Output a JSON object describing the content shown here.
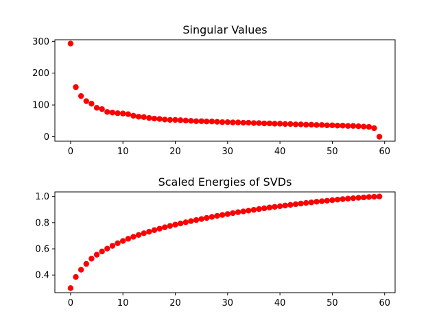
{
  "chart_data": [
    {
      "type": "scatter",
      "title": "Singular Values",
      "xlabel": "",
      "ylabel": "",
      "xlim": [
        -3,
        62
      ],
      "ylim": [
        -14,
        305
      ],
      "grid": false,
      "marker_color": "#ff0000",
      "x_ticks": [
        0,
        10,
        20,
        30,
        40,
        50,
        60
      ],
      "x_tick_labels": [
        "0",
        "10",
        "20",
        "30",
        "40",
        "50",
        "60"
      ],
      "y_ticks": [
        0,
        100,
        200,
        300
      ],
      "y_tick_labels": [
        "0",
        "100",
        "200",
        "300"
      ],
      "x": [
        0,
        1,
        2,
        3,
        4,
        5,
        6,
        7,
        8,
        9,
        10,
        11,
        12,
        13,
        14,
        15,
        16,
        17,
        18,
        19,
        20,
        21,
        22,
        23,
        24,
        25,
        26,
        27,
        28,
        29,
        30,
        31,
        32,
        33,
        34,
        35,
        36,
        37,
        38,
        39,
        40,
        41,
        42,
        43,
        44,
        45,
        46,
        47,
        48,
        49,
        50,
        51,
        52,
        53,
        54,
        55,
        56,
        57,
        58,
        59
      ],
      "y": [
        293,
        156,
        128,
        112,
        104,
        91,
        87,
        78,
        76,
        74,
        73,
        71,
        66,
        63,
        62,
        59,
        57,
        56,
        54,
        53,
        53,
        52,
        51,
        50,
        49,
        49,
        48,
        48,
        47,
        46,
        46,
        45,
        45,
        44,
        44,
        43,
        43,
        42,
        42,
        41,
        41,
        40,
        40,
        39,
        39,
        38,
        38,
        37,
        37,
        36,
        36,
        35,
        35,
        34,
        34,
        33,
        32,
        31,
        27,
        0
      ]
    },
    {
      "type": "scatter",
      "title": "Scaled Energies of SVDs",
      "xlabel": "",
      "ylabel": "",
      "xlim": [
        -3,
        62
      ],
      "ylim": [
        0.265,
        1.035
      ],
      "grid": false,
      "marker_color": "#ff0000",
      "x_ticks": [
        0,
        10,
        20,
        30,
        40,
        50,
        60
      ],
      "x_tick_labels": [
        "0",
        "10",
        "20",
        "30",
        "40",
        "50",
        "60"
      ],
      "y_ticks": [
        0.4,
        0.6,
        0.8,
        1.0
      ],
      "y_tick_labels": [
        "0.4",
        "0.6",
        "0.8",
        "1.0"
      ],
      "x": [
        0,
        1,
        2,
        3,
        4,
        5,
        6,
        7,
        8,
        9,
        10,
        11,
        12,
        13,
        14,
        15,
        16,
        17,
        18,
        19,
        20,
        21,
        22,
        23,
        24,
        25,
        26,
        27,
        28,
        29,
        30,
        31,
        32,
        33,
        34,
        35,
        36,
        37,
        38,
        39,
        40,
        41,
        42,
        43,
        44,
        45,
        46,
        47,
        48,
        49,
        50,
        51,
        52,
        53,
        54,
        55,
        56,
        57,
        58,
        59
      ],
      "y": [
        0.3,
        0.385,
        0.44,
        0.485,
        0.525,
        0.555,
        0.58,
        0.602,
        0.623,
        0.643,
        0.66,
        0.677,
        0.692,
        0.706,
        0.719,
        0.731,
        0.743,
        0.754,
        0.765,
        0.775,
        0.785,
        0.794,
        0.803,
        0.812,
        0.82,
        0.828,
        0.836,
        0.844,
        0.852,
        0.859,
        0.866,
        0.873,
        0.88,
        0.886,
        0.892,
        0.898,
        0.904,
        0.91,
        0.916,
        0.921,
        0.926,
        0.931,
        0.936,
        0.941,
        0.946,
        0.951,
        0.955,
        0.96,
        0.964,
        0.968,
        0.972,
        0.976,
        0.98,
        0.984,
        0.987,
        0.99,
        0.993,
        0.996,
        0.998,
        1.0
      ]
    }
  ]
}
